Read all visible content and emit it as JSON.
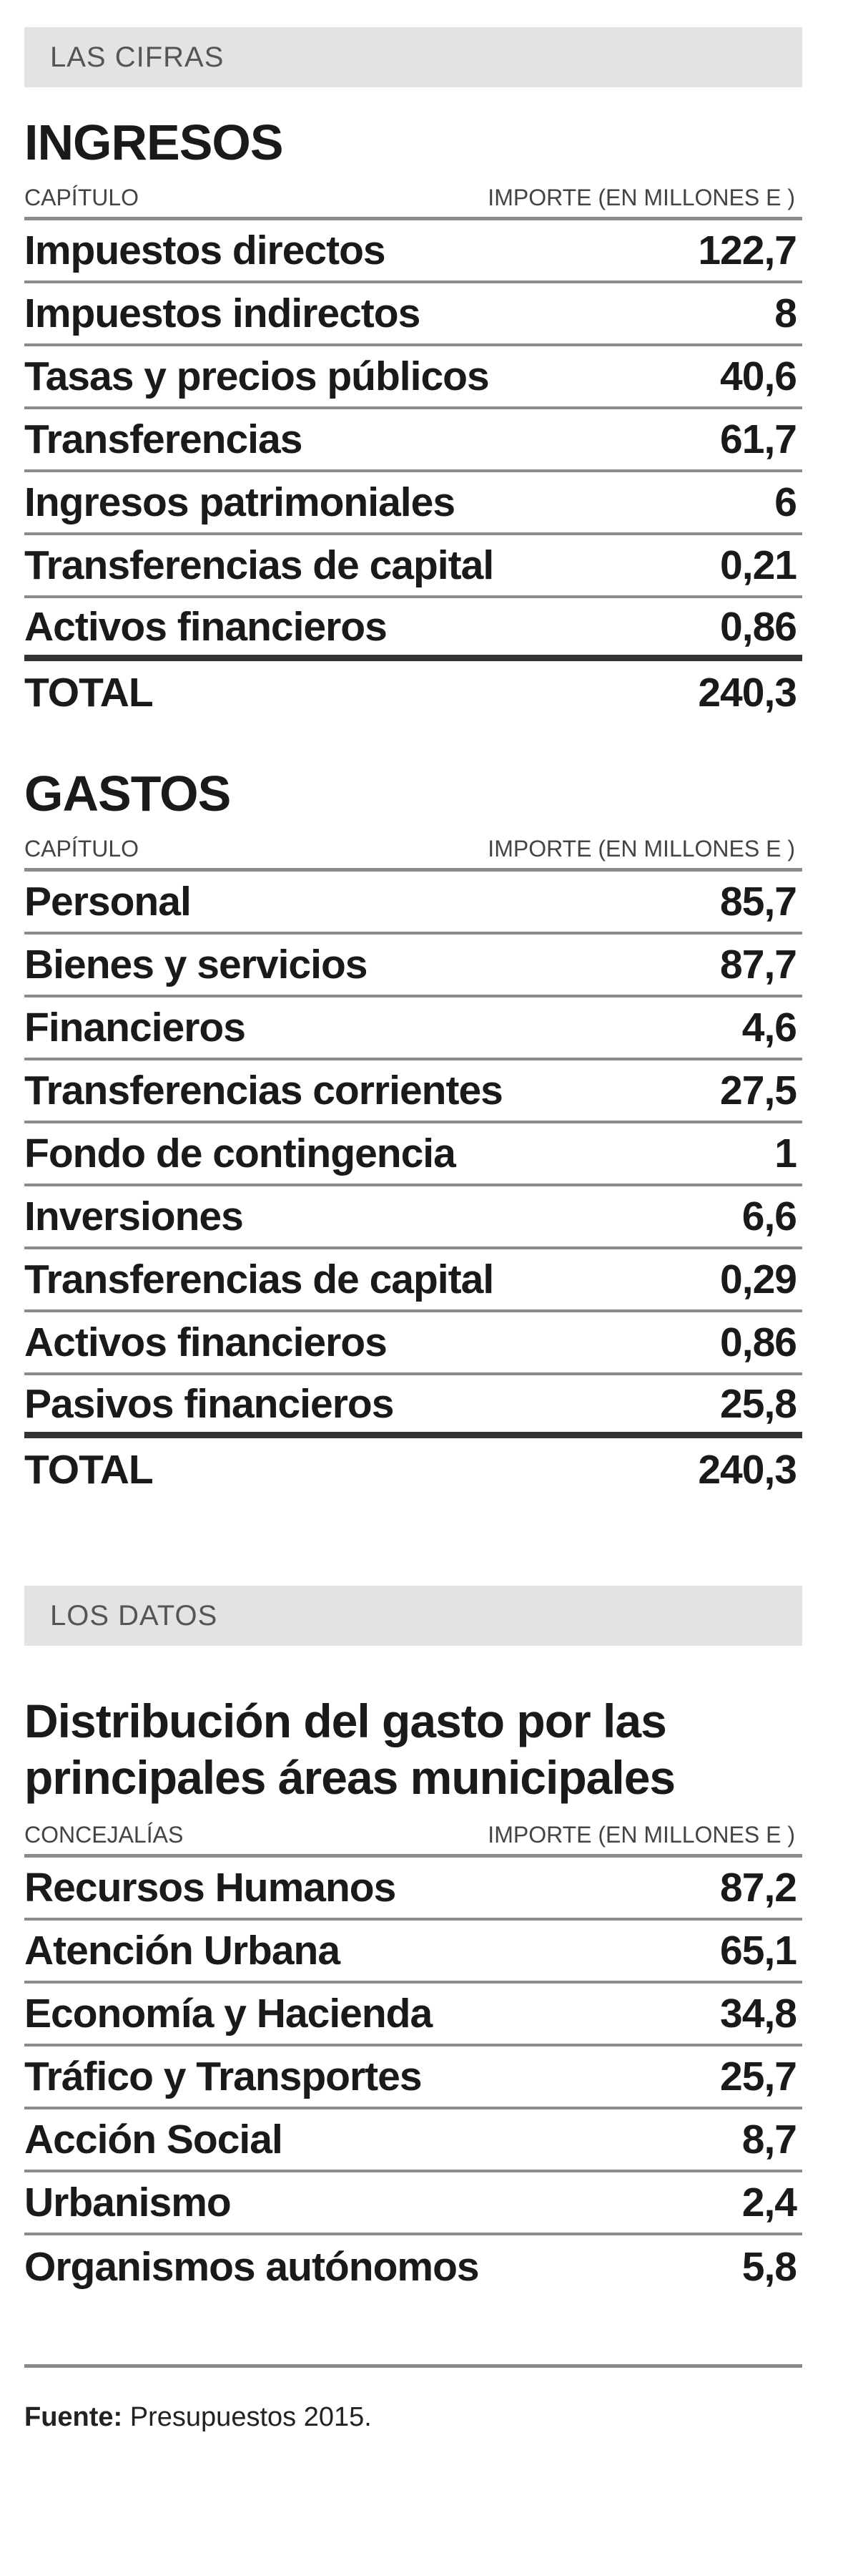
{
  "cifras_band": "LAS CIFRAS",
  "ingresos": {
    "title": "INGRESOS",
    "col_left": "CAPÍTULO",
    "col_right": "IMPORTE (EN MILLONES E )",
    "rows": [
      {
        "label": "Impuestos directos",
        "value": "122,7"
      },
      {
        "label": "Impuestos indirectos",
        "value": "8"
      },
      {
        "label": "Tasas y precios públicos",
        "value": "40,6"
      },
      {
        "label": "Transferencias",
        "value": "61,7"
      },
      {
        "label": "Ingresos patrimoniales",
        "value": "6"
      },
      {
        "label": "Transferencias de capital",
        "value": "0,21"
      },
      {
        "label": "Activos financieros",
        "value": "0,86"
      }
    ],
    "total_label": "TOTAL",
    "total_value": "240,3"
  },
  "gastos": {
    "title": "GASTOS",
    "col_left": "CAPÍTULO",
    "col_right": "IMPORTE (EN MILLONES E )",
    "rows": [
      {
        "label": "Personal",
        "value": "85,7"
      },
      {
        "label": "Bienes y servicios",
        "value": "87,7"
      },
      {
        "label": "Financieros",
        "value": "4,6"
      },
      {
        "label": "Transferencias corrientes",
        "value": "27,5"
      },
      {
        "label": "Fondo de contingencia",
        "value": "1"
      },
      {
        "label": "Inversiones",
        "value": "6,6"
      },
      {
        "label": "Transferencias de capital",
        "value": "0,29"
      },
      {
        "label": "Activos financieros",
        "value": "0,86"
      },
      {
        "label": "Pasivos financieros",
        "value": "25,8"
      }
    ],
    "total_label": "TOTAL",
    "total_value": "240,3"
  },
  "datos_band": "LOS DATOS",
  "distribucion": {
    "title_line1": "Distribución del gasto por las",
    "title_line2": "principales áreas municipales",
    "col_left": "CONCEJALÍAS",
    "col_right": "IMPORTE (EN MILLONES E )",
    "rows": [
      {
        "label": "Recursos Humanos",
        "value": "87,2"
      },
      {
        "label": "Atención Urbana",
        "value": "65,1"
      },
      {
        "label": "Economía y Hacienda",
        "value": "34,8"
      },
      {
        "label": "Tráfico y Transportes",
        "value": "25,7"
      },
      {
        "label": "Acción Social",
        "value": "8,7"
      },
      {
        "label": "Urbanismo",
        "value": "2,4"
      },
      {
        "label": "Organismos autónomos",
        "value": "5,8"
      }
    ]
  },
  "source": {
    "label": "Fuente:",
    "text": "Presupuestos 2015."
  }
}
